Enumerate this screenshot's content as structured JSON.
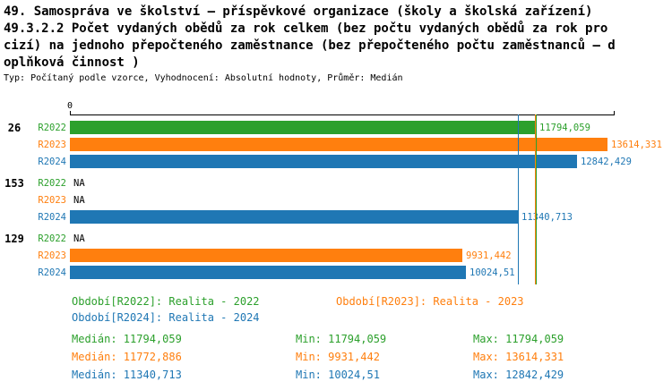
{
  "header": {
    "line1": "49. Samospráva ve školství – příspěvkové organizace (školy a školská zařízení)",
    "line2": "49.3.2.2 Počet vydaných obědů za rok celkem (bez počtu vydaných obědů za rok pro",
    "line3": "cizí) na jednoho přepočteného zaměstnance (bez přepočteného počtu zaměstnanců – d",
    "line4": "oplňková činnost )",
    "meta": "Typ: Počítaný podle vzorce, Vyhodnocení: Absolutní hodnoty, Průměr: Medián"
  },
  "chart_data": {
    "type": "bar",
    "orientation": "horizontal",
    "title": "49.3.2.2 Počet vydaných obědů za rok celkem (bez počtu vydaných obědů za rok pro cizí) na jednoho přepočteného zaměstnance (bez přepočteného počtu zaměstnanců – doplňková činnost )",
    "axis": {
      "origin_label": "0",
      "xmin": 0,
      "xmax": 13800,
      "grid": false
    },
    "colors": {
      "R2022": "#2CA02C",
      "R2023": "#FF7F0E",
      "R2024": "#1F77B4"
    },
    "groups": [
      {
        "label": "26",
        "bars": [
          {
            "series": "R2022",
            "value": 11794.059,
            "display": "11794,059"
          },
          {
            "series": "R2023",
            "value": 13614.331,
            "display": "13614,331"
          },
          {
            "series": "R2024",
            "value": 12842.429,
            "display": "12842,429"
          }
        ]
      },
      {
        "label": "153",
        "bars": [
          {
            "series": "R2022",
            "value": null,
            "display": "NA"
          },
          {
            "series": "R2023",
            "value": null,
            "display": "NA"
          },
          {
            "series": "R2024",
            "value": 11340.713,
            "display": "11340,713"
          }
        ]
      },
      {
        "label": "129",
        "bars": [
          {
            "series": "R2022",
            "value": null,
            "display": "NA"
          },
          {
            "series": "R2023",
            "value": 9931.442,
            "display": "9931,442"
          },
          {
            "series": "R2024",
            "value": 10024.51,
            "display": "10024,51"
          }
        ]
      }
    ],
    "median_lines": [
      {
        "series": "R2024",
        "value": 11340.713
      },
      {
        "series": "R2023",
        "value": 11772.886
      },
      {
        "series": "R2022",
        "value": 11794.059
      }
    ]
  },
  "legend": {
    "items": [
      {
        "series": "R2022",
        "label": "Období[R2022]: Realita - 2022"
      },
      {
        "series": "R2023",
        "label": "Období[R2023]: Realita - 2023"
      },
      {
        "series": "R2024",
        "label": "Období[R2024]: Realita - 2024"
      }
    ],
    "stats": [
      {
        "series": "R2022",
        "median": "Medián: 11794,059",
        "min": "Min: 11794,059",
        "max": "Max: 11794,059"
      },
      {
        "series": "R2023",
        "median": "Medián: 11772,886",
        "min": "Min: 9931,442",
        "max": "Max: 13614,331"
      },
      {
        "series": "R2024",
        "median": "Medián: 11340,713",
        "min": "Min: 10024,51",
        "max": "Max: 12842,429"
      }
    ]
  }
}
